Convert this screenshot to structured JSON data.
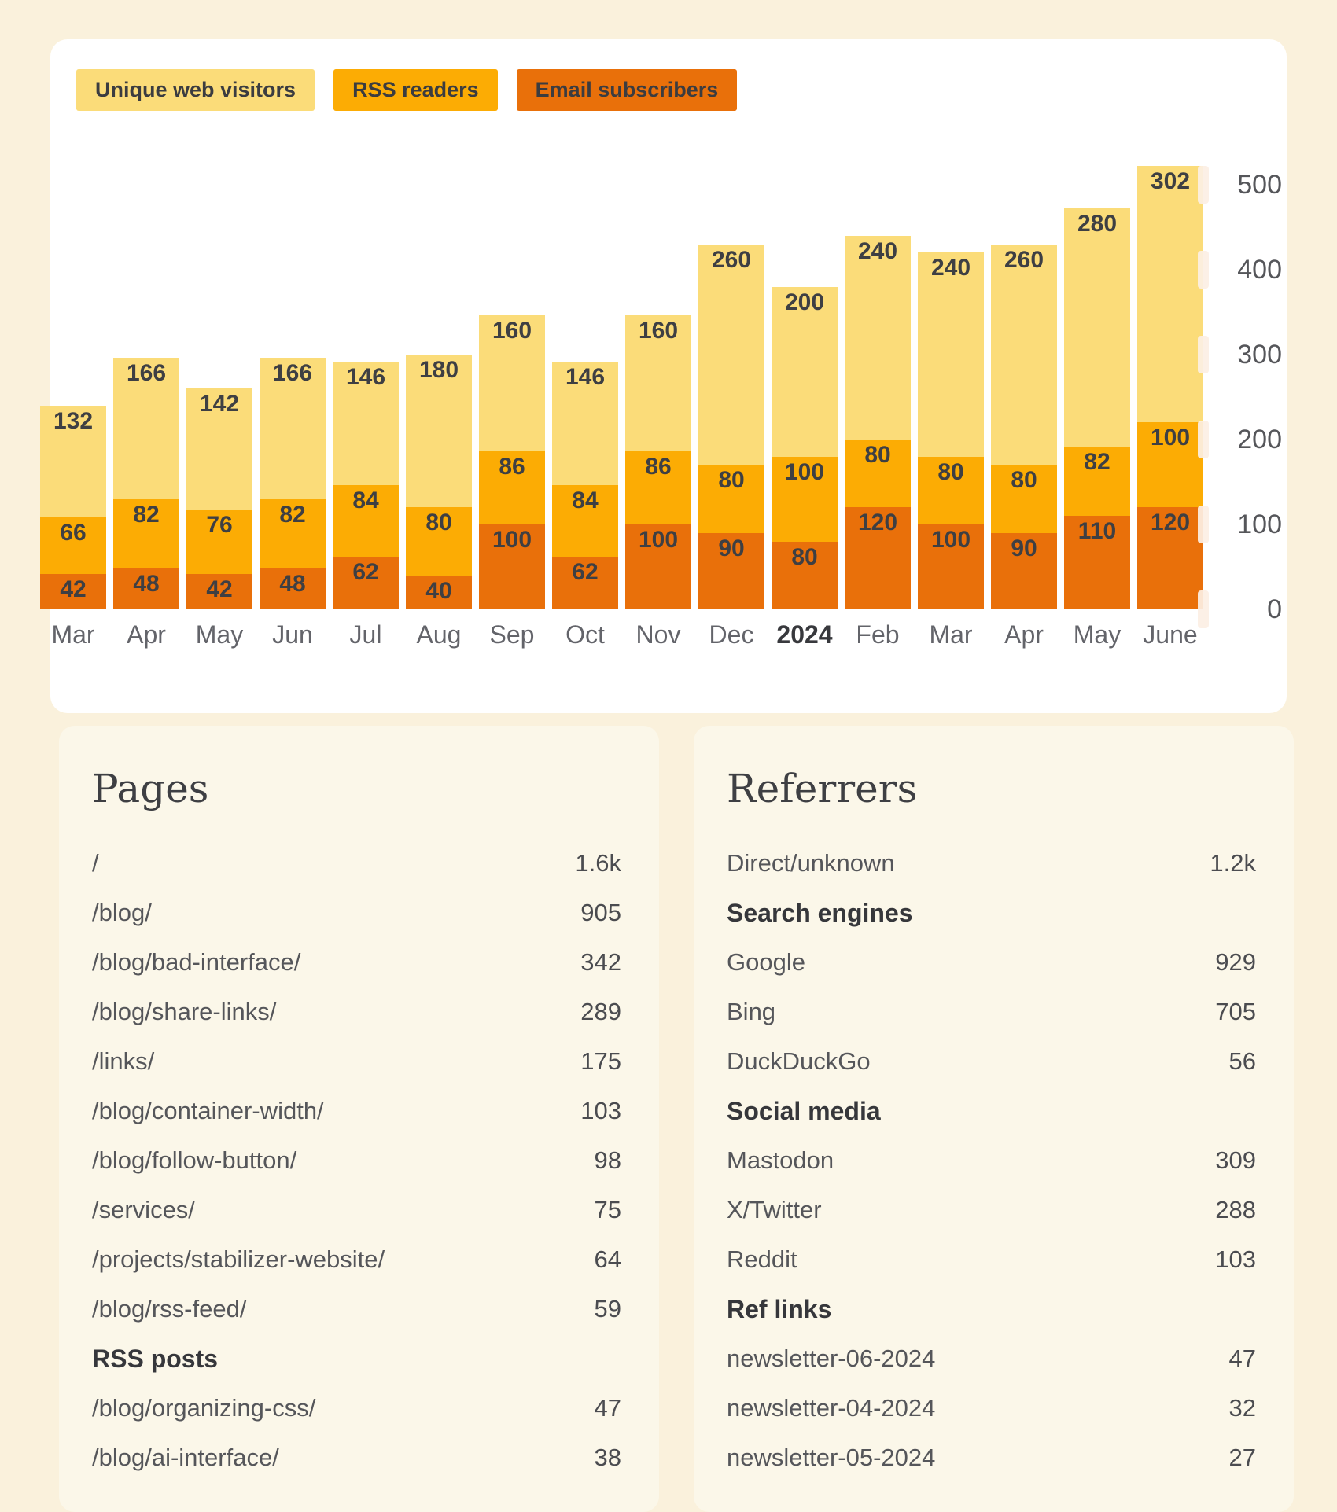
{
  "legend": [
    {
      "label": "Unique web visitors",
      "color": "#FBDC79"
    },
    {
      "label": "RSS readers",
      "color": "#FCAC04"
    },
    {
      "label": "Email subscribers",
      "color": "#E9700A"
    }
  ],
  "chart_data": {
    "type": "bar",
    "stacked": true,
    "categories": [
      "Mar",
      "Apr",
      "May",
      "Jun",
      "Jul",
      "Aug",
      "Sep",
      "Oct",
      "Nov",
      "Dec",
      "2024",
      "Feb",
      "Mar",
      "Apr",
      "May",
      "June"
    ],
    "series": [
      {
        "name": "Unique web visitors",
        "color": "#FBDC79",
        "values": [
          132,
          166,
          142,
          166,
          146,
          180,
          160,
          146,
          160,
          260,
          200,
          240,
          240,
          260,
          280,
          302
        ]
      },
      {
        "name": "RSS readers",
        "color": "#FCAC04",
        "values": [
          66,
          82,
          76,
          82,
          84,
          80,
          86,
          84,
          86,
          80,
          100,
          80,
          80,
          80,
          82,
          100
        ]
      },
      {
        "name": "Email subscribers",
        "color": "#E9700A",
        "values": [
          42,
          48,
          42,
          48,
          62,
          40,
          100,
          62,
          100,
          90,
          80,
          120,
          100,
          90,
          110,
          120
        ]
      }
    ],
    "ylim": [
      0,
      500
    ],
    "y_ticks": [
      0,
      100,
      200,
      300,
      400,
      500
    ],
    "first_bar_clipped": true,
    "bold_category": "2024",
    "legend_position": "top-left",
    "grid": false,
    "value_labels": true
  },
  "pages": {
    "title": "Pages",
    "rows": [
      {
        "kind": "item",
        "label": "/",
        "value": "1.6k"
      },
      {
        "kind": "item",
        "label": "/blog/",
        "value": "905"
      },
      {
        "kind": "item",
        "label": "/blog/bad-interface/",
        "value": "342"
      },
      {
        "kind": "item",
        "label": "/blog/share-links/",
        "value": "289"
      },
      {
        "kind": "item",
        "label": "/links/",
        "value": "175"
      },
      {
        "kind": "item",
        "label": "/blog/container-width/",
        "value": "103"
      },
      {
        "kind": "item",
        "label": "/blog/follow-button/",
        "value": "98"
      },
      {
        "kind": "item",
        "label": "/services/",
        "value": "75"
      },
      {
        "kind": "item",
        "label": "/projects/stabilizer-website/",
        "value": "64"
      },
      {
        "kind": "item",
        "label": "/blog/rss-feed/",
        "value": "59"
      },
      {
        "kind": "heading",
        "label": "RSS posts",
        "value": ""
      },
      {
        "kind": "item",
        "label": "/blog/organizing-css/",
        "value": "47"
      },
      {
        "kind": "item",
        "label": "/blog/ai-interface/",
        "value": "38"
      }
    ]
  },
  "referrers": {
    "title": "Referrers",
    "rows": [
      {
        "kind": "item",
        "label": "Direct/unknown",
        "value": "1.2k"
      },
      {
        "kind": "heading",
        "label": "Search engines",
        "value": ""
      },
      {
        "kind": "item",
        "label": "Google",
        "value": "929"
      },
      {
        "kind": "item",
        "label": "Bing",
        "value": "705"
      },
      {
        "kind": "item",
        "label": "DuckDuckGo",
        "value": "56"
      },
      {
        "kind": "heading",
        "label": "Social media",
        "value": ""
      },
      {
        "kind": "item",
        "label": "Mastodon",
        "value": "309"
      },
      {
        "kind": "item",
        "label": "X/Twitter",
        "value": "288"
      },
      {
        "kind": "item",
        "label": "Reddit",
        "value": "103"
      },
      {
        "kind": "heading",
        "label": "Ref links",
        "value": ""
      },
      {
        "kind": "item",
        "label": "newsletter-06-2024",
        "value": "47"
      },
      {
        "kind": "item",
        "label": "newsletter-04-2024",
        "value": "32"
      },
      {
        "kind": "item",
        "label": "newsletter-05-2024",
        "value": "27"
      }
    ]
  }
}
